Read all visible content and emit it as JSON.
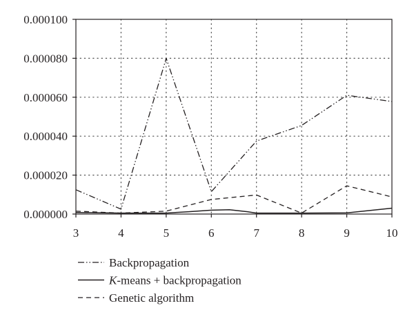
{
  "chart_data": {
    "type": "line",
    "title": "",
    "xlabel": "",
    "ylabel": "",
    "x": [
      3,
      4,
      5,
      6,
      7,
      8,
      9,
      10
    ],
    "xlim": [
      3,
      10
    ],
    "ylim": [
      0,
      0.0001
    ],
    "x_ticks": [
      "3",
      "4",
      "5",
      "6",
      "7",
      "8",
      "9",
      "10"
    ],
    "y_ticks": [
      "0.000000",
      "0.000020",
      "0.000040",
      "0.000060",
      "0.000080",
      "0.000100"
    ],
    "grid": "dotted",
    "legend_position": "bottom",
    "series": [
      {
        "name": "Backpropagation",
        "line_style": "dash-dot-dot",
        "points": [
          [
            3,
            1.25e-05
          ],
          [
            4,
            2.5e-06
          ],
          [
            5,
            8e-05
          ],
          [
            6,
            1.15e-05
          ],
          [
            7,
            3.75e-05
          ],
          [
            8,
            4.55e-05
          ],
          [
            9,
            6.1e-05
          ],
          [
            10,
            5.78e-05
          ]
        ]
      },
      {
        "name": "K-means + backpropagation",
        "line_style": "solid",
        "points": [
          [
            3,
            8e-07
          ],
          [
            4,
            5e-07
          ],
          [
            5,
            5e-07
          ],
          [
            5.5,
            1.2e-06
          ],
          [
            6,
            2e-06
          ],
          [
            6.4,
            2.2e-06
          ],
          [
            6.8,
            1.2e-06
          ],
          [
            7,
            5e-07
          ],
          [
            8,
            5e-07
          ],
          [
            9,
            6e-07
          ],
          [
            10,
            3e-06
          ]
        ]
      },
      {
        "name": "Genetic algorithm",
        "line_style": "dashed",
        "points": [
          [
            3,
            1.5e-06
          ],
          [
            4,
            5e-07
          ],
          [
            5,
            1.5e-06
          ],
          [
            6,
            7.5e-06
          ],
          [
            7,
            9.8e-06
          ],
          [
            8,
            5e-07
          ],
          [
            9,
            1.45e-05
          ],
          [
            10,
            8.8e-06
          ]
        ]
      }
    ]
  }
}
